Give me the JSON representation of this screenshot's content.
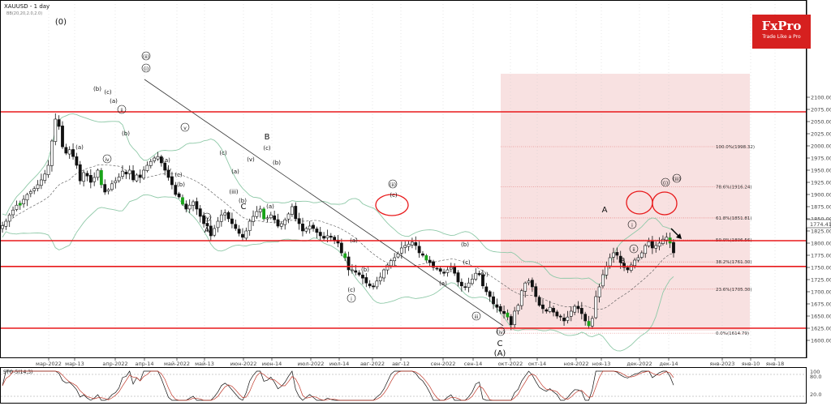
{
  "header": {
    "symbol": "XAUUSD - 1 day",
    "bb_label": "BB(20,20,2.0,2.0)",
    "sto_label": "STO-5(14,3)"
  },
  "logo": {
    "brand": "FxPro",
    "tagline": "Trade Like a Pro"
  },
  "colors": {
    "bull": "#19a319",
    "bear": "#111111",
    "bb_band": "#8fc9a8",
    "sr_line": "#e8191b",
    "fib_zone": "#f7dede",
    "current_price": "#333333"
  },
  "chart_data": {
    "type": "candlestick",
    "ylim": [
      1590,
      2105
    ],
    "y_ticks": [
      1600,
      1625,
      1650,
      1675,
      1700,
      1725,
      1750,
      1775,
      1800,
      1825,
      1850,
      1875,
      1900,
      1925,
      1950,
      1975,
      2000,
      2025,
      2050,
      2075,
      2100
    ],
    "current_price_label": "1774.41",
    "x_labels": [
      "мар-2022",
      "мар-13",
      "апр-2022",
      "апр-14",
      "май-2022",
      "май-13",
      "июн-2022",
      "июн-14",
      "июл-2022",
      "июл-14",
      "авг-2022",
      "авг-12",
      "сен-2022",
      "сен-14",
      "окт-2022",
      "окт-14",
      "ноя-2022",
      "ноя-13",
      "дек-2022",
      "дек-14",
      "янв-2023",
      "янв-10",
      "янв-18"
    ],
    "horizontal_levels": [
      2070,
      1805,
      1752,
      1625
    ],
    "fibonacci": [
      {
        "label": "100.0%(1998.32)",
        "value": 1998.32
      },
      {
        "label": "78.6%(1916.24)",
        "value": 1916.24
      },
      {
        "label": "61.8%(1851.81)",
        "value": 1851.81
      },
      {
        "label": "50.0%(1806.56)",
        "value": 1806.56
      },
      {
        "label": "38.2%(1761.30)",
        "value": 1761.3
      },
      {
        "label": "23.6%(1705.30)",
        "value": 1705.3
      },
      {
        "label": "0.0%(1614.79)",
        "value": 1614.79
      }
    ],
    "wave_labels": [
      "(0)",
      "(i)",
      "(ii)",
      "(iii)",
      "(iv)",
      "(v)",
      "(a)",
      "(b)",
      "(c)",
      "i",
      "ii",
      "iii",
      "iv",
      "v",
      "A",
      "B",
      "C",
      "(A)"
    ],
    "closes": [
      1836,
      1845,
      1858,
      1868,
      1878,
      1882,
      1890,
      1900,
      1906,
      1912,
      1920,
      1930,
      1942,
      1960,
      2010,
      2055,
      2040,
      1998,
      1985,
      1992,
      1978,
      1960,
      1928,
      1945,
      1938,
      1925,
      1935,
      1950,
      1920,
      1905,
      1910,
      1922,
      1928,
      1936,
      1948,
      1942,
      1950,
      1930,
      1940,
      1935,
      1950,
      1960,
      1968,
      1975,
      1978,
      1965,
      1950,
      1935,
      1920,
      1900,
      1895,
      1880,
      1870,
      1878,
      1885,
      1870,
      1855,
      1840,
      1835,
      1815,
      1830,
      1845,
      1858,
      1862,
      1850,
      1840,
      1830,
      1820,
      1812,
      1825,
      1845,
      1855,
      1865,
      1870,
      1850,
      1852,
      1858,
      1848,
      1835,
      1840,
      1848,
      1860,
      1875,
      1850,
      1840,
      1825,
      1830,
      1835,
      1830,
      1822,
      1815,
      1810,
      1815,
      1812,
      1805,
      1800,
      1780,
      1770,
      1745,
      1745,
      1740,
      1735,
      1728,
      1718,
      1712,
      1710,
      1722,
      1730,
      1745,
      1755,
      1764,
      1770,
      1778,
      1790,
      1795,
      1798,
      1802,
      1795,
      1780,
      1775,
      1765,
      1760,
      1750,
      1748,
      1742,
      1738,
      1745,
      1750,
      1738,
      1720,
      1712,
      1710,
      1718,
      1726,
      1738,
      1735,
      1712,
      1700,
      1690,
      1675,
      1668,
      1660,
      1655,
      1648,
      1632,
      1660,
      1672,
      1702,
      1718,
      1722,
      1710,
      1690,
      1672,
      1665,
      1660,
      1668,
      1658,
      1650,
      1648,
      1640,
      1648,
      1660,
      1670,
      1665,
      1655,
      1640,
      1630,
      1645,
      1690,
      1710,
      1735,
      1752,
      1770,
      1780,
      1775,
      1760,
      1750,
      1745,
      1755,
      1765,
      1770,
      1780,
      1795,
      1803,
      1790,
      1795,
      1800,
      1808,
      1812,
      1800,
      1780
    ]
  }
}
